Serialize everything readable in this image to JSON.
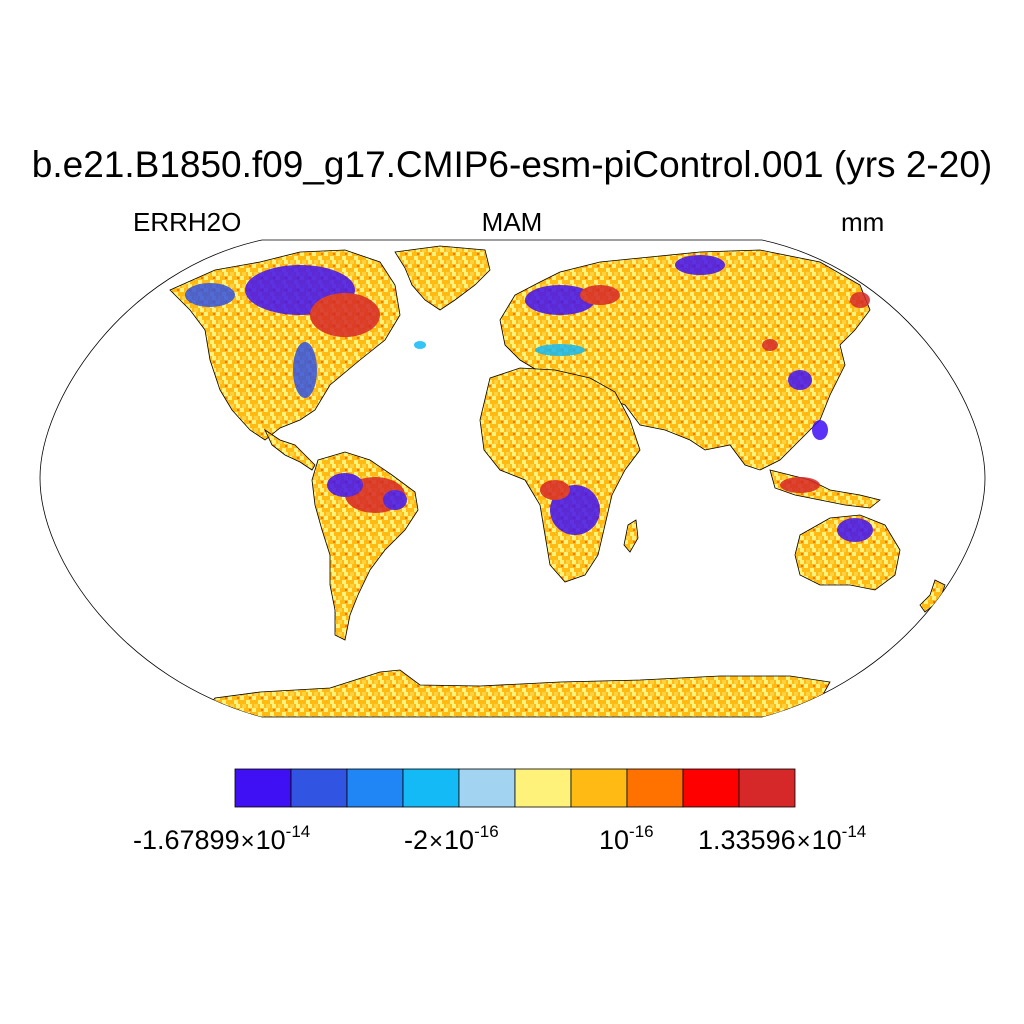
{
  "title": "b.e21.B1850.f09_g17.CMIP6-esm-piControl.001 (yrs 2-20)",
  "variable": "ERRH2O",
  "season": "MAM",
  "units": "mm",
  "colorbar": {
    "colors": [
      "#4010f5",
      "#3254e3",
      "#2186f5",
      "#13baf5",
      "#a2d4f2",
      "#fff27a",
      "#ffbb14",
      "#ff7200",
      "#ff0000",
      "#d62828"
    ],
    "labels": [
      {
        "mantissa": "-1.67899",
        "times": "×",
        "base": "10",
        "exp": "-14"
      },
      {
        "mantissa": "-2",
        "times": "×",
        "base": "10",
        "exp": "-16"
      },
      {
        "mantissa": "",
        "times": "",
        "base": "10",
        "exp": "-16"
      },
      {
        "mantissa": "1.33596",
        "times": "×",
        "base": "10",
        "exp": "-14"
      }
    ]
  }
}
